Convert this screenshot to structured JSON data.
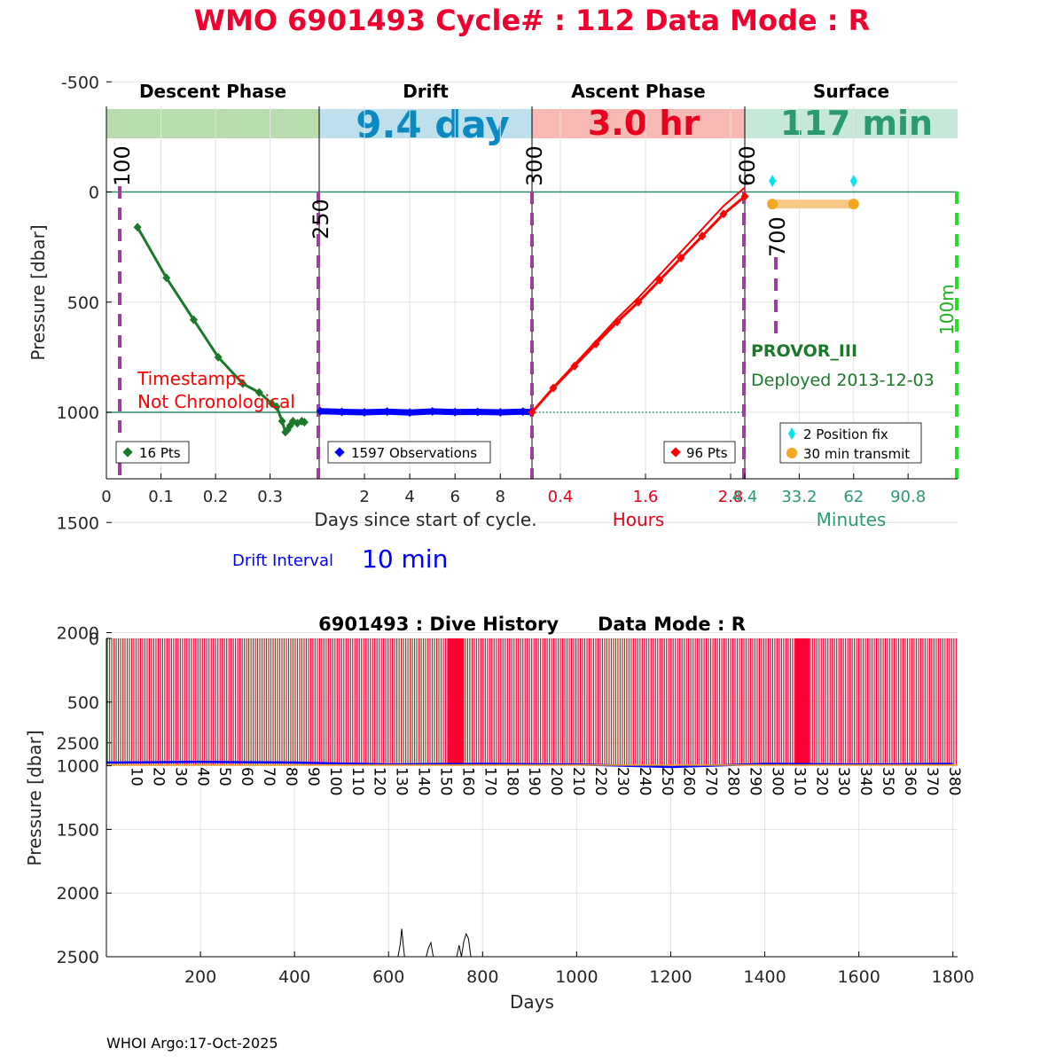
{
  "title": "WMO 6901493   Cycle# : 112   Data Mode : R",
  "phases": [
    {
      "name": "Descent Phase",
      "value": "",
      "color": "#b9dcae",
      "value_color": "#000000"
    },
    {
      "name": "Drift",
      "value": "9.4 day",
      "color": "#bde0ec",
      "value_color": "#0a8ac0"
    },
    {
      "name": "Ascent Phase",
      "value": "3.0 hr",
      "color": "#f8b9b4",
      "value_color": "#e8001c"
    },
    {
      "name": "Surface",
      "value": "117 min",
      "color": "#c6e8d8",
      "value_color": "#2a9a70"
    }
  ],
  "top_y_ticks": [
    "-500",
    "0",
    "500",
    "1000",
    "1500",
    "2000",
    "2500"
  ],
  "top_y_label": "Pressure [dbar]",
  "descent_ticks": [
    "0",
    "0.1",
    "0.2",
    "0.3"
  ],
  "drift_ticks": [
    "2",
    "4",
    "6",
    "8"
  ],
  "ascent_ticks": [
    "0.4",
    "1.6",
    "2.8"
  ],
  "surface_ticks": [
    "4.4",
    "33.2",
    "62",
    "90.8"
  ],
  "x_label_days": "Days since start of cycle.",
  "x_label_hours": "Hours",
  "x_label_minutes": "Minutes",
  "vline_labels": [
    "100",
    "250",
    "300",
    "600",
    "700",
    "100m"
  ],
  "timestamps_note": [
    "Timestamps",
    "Not Chronological"
  ],
  "float_type": "PROVOR_III",
  "deployed": "Deployed 2013-12-03",
  "legends": {
    "descent": "16 Pts",
    "drift": "1597 Observations",
    "ascent": "96 Pts",
    "surface_fix": "2 Position fix",
    "surface_transmit": "30 min transmit"
  },
  "drift_interval_label": "Drift Interval",
  "drift_interval_value": "10 min",
  "bottom_title": "6901493 : Dive History      Data Mode : R",
  "bottom_y_ticks": [
    "0",
    "500",
    "1000",
    "1500",
    "2000",
    "2500"
  ],
  "bottom_x_ticks": [
    "200",
    "400",
    "600",
    "800",
    "1000",
    "1200",
    "1400",
    "1600",
    "1800"
  ],
  "bottom_y_label": "Pressure [dbar]",
  "bottom_x_label": "Days",
  "cycle_labels": [
    "10",
    "20",
    "30",
    "40",
    "50",
    "60",
    "70",
    "80",
    "90",
    "100",
    "110",
    "120",
    "130",
    "140",
    "150",
    "160",
    "170",
    "180",
    "190",
    "200",
    "210",
    "220",
    "230",
    "240",
    "250",
    "260",
    "270",
    "280",
    "290",
    "300",
    "310",
    "320",
    "330",
    "340",
    "350",
    "360",
    "370",
    "380"
  ],
  "footer": "WHOI Argo:17-Oct-2025",
  "chart_data": [
    {
      "type": "line",
      "title": "WMO 6901493   Cycle# : 112   Data Mode : R",
      "ylabel": "Pressure [dbar]",
      "ylim": [
        -750,
        2600
      ],
      "y_reversed": true,
      "panels": [
        {
          "name": "Descent Phase",
          "xlabel": "Days since start of cycle.",
          "xlim": [
            0,
            0.39
          ],
          "series": [
            {
              "name": "16 Pts",
              "color": "#1a7a2a",
              "x": [
                0.057,
                0.11,
                0.16,
                0.205,
                0.25,
                0.28,
                0.303,
                0.312,
                0.322,
                0.328,
                0.332,
                0.337,
                0.342,
                0.35,
                0.358,
                0.363
              ],
              "y": [
                160,
                390,
                580,
                750,
                870,
                910,
                960,
                975,
                1040,
                1090,
                1080,
                1060,
                1040,
                1050,
                1040,
                1045
              ]
            }
          ]
        },
        {
          "name": "Drift",
          "xlabel": "Days since start of cycle.",
          "xlim": [
            0,
            9.4
          ],
          "series": [
            {
              "name": "1597 Observations",
              "color": "#0000ff",
              "x": [
                0.05,
                1,
                2,
                3,
                4,
                5,
                6,
                7,
                8,
                9,
                9.35
              ],
              "y": [
                995,
                998,
                1000,
                997,
                1001,
                996,
                999,
                998,
                1000,
                997,
                999
              ]
            }
          ]
        },
        {
          "name": "Ascent Phase",
          "xlabel": "Hours",
          "xlim": [
            0,
            3.0
          ],
          "series": [
            {
              "name": "96 Pts",
              "color": "#ff0000",
              "x": [
                0.0,
                0.3,
                0.6,
                0.9,
                1.2,
                1.5,
                1.8,
                2.1,
                2.4,
                2.7,
                3.0
              ],
              "y": [
                1000,
                890,
                790,
                690,
                590,
                500,
                400,
                300,
                200,
                100,
                20
              ]
            }
          ]
        },
        {
          "name": "Surface",
          "xlabel": "Minutes",
          "xlim": [
            4.4,
            117
          ],
          "series": [
            {
              "name": "2 Position fix",
              "color": "#00e5ee",
              "x": [
                19,
                62
              ],
              "y": [
                -50,
                -50
              ]
            },
            {
              "name": "30 min transmit",
              "color": "#f5a623",
              "x": [
                19,
                62
              ],
              "y": [
                55,
                55
              ]
            }
          ]
        }
      ]
    },
    {
      "type": "line",
      "title": "6901493 : Dive History      Data Mode : R",
      "xlabel": "Days",
      "ylabel": "Pressure [dbar]",
      "xlim": [
        0,
        1810
      ],
      "ylim": [
        0,
        2500
      ],
      "y_reversed": true,
      "cycle_period_days": 4.7,
      "series": [
        {
          "name": "drift",
          "color": "#0000ff",
          "x": [
            0,
            200,
            400,
            600,
            800,
            1000,
            1200,
            1400,
            1600,
            1800
          ],
          "y": [
            975,
            970,
            975,
            990,
            985,
            990,
            1010,
            985,
            990,
            985
          ]
        },
        {
          "name": "bottom",
          "color": "#000000",
          "x": [
            620,
            625,
            628,
            631,
            634,
            680,
            685,
            690,
            695,
            745,
            750,
            755,
            760,
            765,
            770,
            775
          ],
          "y": [
            2500,
            2400,
            2280,
            2400,
            2500,
            2500,
            2430,
            2390,
            2500,
            2500,
            2410,
            2500,
            2380,
            2320,
            2360,
            2500
          ]
        }
      ]
    }
  ]
}
